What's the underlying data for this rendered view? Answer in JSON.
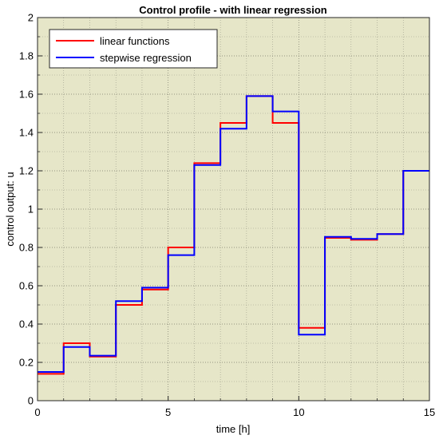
{
  "chart_data": {
    "type": "line",
    "step": true,
    "title": "Control profile - with linear regression",
    "xlabel": "time [h]",
    "ylabel": "control output: u",
    "xlim": [
      0,
      15
    ],
    "ylim": [
      0,
      2
    ],
    "xticks": [
      0,
      5,
      10,
      15
    ],
    "yticks": [
      0,
      0.2,
      0.4,
      0.6,
      0.8,
      1,
      1.2,
      1.4,
      1.6,
      1.8,
      2
    ],
    "xtick_labels": [
      "0",
      "5",
      "10",
      "15"
    ],
    "ytick_labels": [
      "0",
      "0.2",
      "0.4",
      "0.6",
      "0.8",
      "1",
      "1.2",
      "1.4",
      "1.6",
      "1.8",
      "2"
    ],
    "grid": true,
    "minor_grid": true,
    "legend_position": "top-left",
    "background": "#e6e6c8",
    "x": [
      0,
      1,
      2,
      3,
      4,
      5,
      6,
      7,
      8,
      9,
      10,
      11,
      12,
      13,
      14
    ],
    "series": [
      {
        "name": "linear functions",
        "color": "#ff0000",
        "values": [
          0.14,
          0.3,
          0.23,
          0.5,
          0.58,
          0.8,
          1.24,
          1.45,
          1.59,
          1.45,
          0.38,
          0.85,
          0.84,
          0.87,
          1.2
        ]
      },
      {
        "name": "stepwise regression",
        "color": "#0000ff",
        "values": [
          0.15,
          0.28,
          0.235,
          0.52,
          0.59,
          0.76,
          1.23,
          1.42,
          1.59,
          1.51,
          0.345,
          0.855,
          0.845,
          0.87,
          1.2
        ]
      }
    ]
  }
}
